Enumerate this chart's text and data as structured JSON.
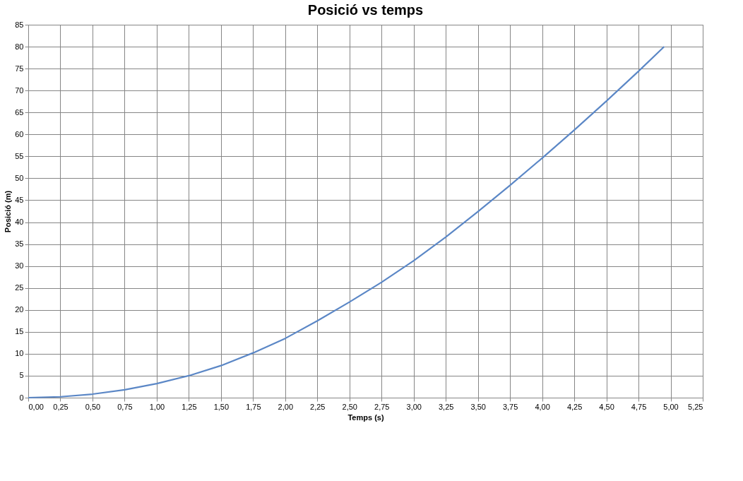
{
  "chart_data": {
    "type": "line",
    "title": "Posició vs temps",
    "xlabel": "Temps (s)",
    "ylabel": "Posició (m)",
    "x": [
      0,
      0.25,
      0.5,
      0.75,
      1.0,
      1.25,
      1.5,
      1.75,
      2.0,
      2.25,
      2.5,
      2.75,
      3.0,
      3.25,
      3.5,
      3.75,
      4.0,
      4.25,
      4.5,
      4.75,
      4.95
    ],
    "series": [
      {
        "color": "#5b87c6",
        "values": [
          0,
          0.2,
          0.8,
          1.8,
          3.2,
          5,
          7.3,
          10.2,
          13.5,
          17.5,
          21.8,
          26.3,
          31.2,
          36.6,
          42.4,
          48.4,
          54.6,
          61,
          67.6,
          74.4,
          80
        ]
      }
    ],
    "xlim": [
      0,
      5.25
    ],
    "xticks": [
      {
        "value": 0,
        "label": "0,00"
      },
      {
        "value": 0.25,
        "label": "0,25"
      },
      {
        "value": 0.5,
        "label": "0,50"
      },
      {
        "value": 0.75,
        "label": "0,75"
      },
      {
        "value": 1,
        "label": "1,00"
      },
      {
        "value": 1.25,
        "label": "1,25"
      },
      {
        "value": 1.5,
        "label": "1,50"
      },
      {
        "value": 1.75,
        "label": "1,75"
      },
      {
        "value": 2,
        "label": "2,00"
      },
      {
        "value": 2.25,
        "label": "2,25"
      },
      {
        "value": 2.5,
        "label": "2,50"
      },
      {
        "value": 2.75,
        "label": "2,75"
      },
      {
        "value": 3,
        "label": "3,00"
      },
      {
        "value": 3.25,
        "label": "3,25"
      },
      {
        "value": 3.5,
        "label": "3,50"
      },
      {
        "value": 3.75,
        "label": "3,75"
      },
      {
        "value": 4,
        "label": "4,00"
      },
      {
        "value": 4.25,
        "label": "4,25"
      },
      {
        "value": 4.5,
        "label": "4,50"
      },
      {
        "value": 4.75,
        "label": "4,75"
      },
      {
        "value": 5,
        "label": "5,00"
      },
      {
        "value": 5.25,
        "label": "5,25"
      }
    ],
    "ylim": [
      0,
      85
    ],
    "yticks": [
      0,
      5,
      10,
      15,
      20,
      25,
      30,
      35,
      40,
      45,
      50,
      55,
      60,
      65,
      70,
      75,
      80,
      85
    ],
    "grid": true,
    "marker": "none",
    "line_style": "solid"
  }
}
